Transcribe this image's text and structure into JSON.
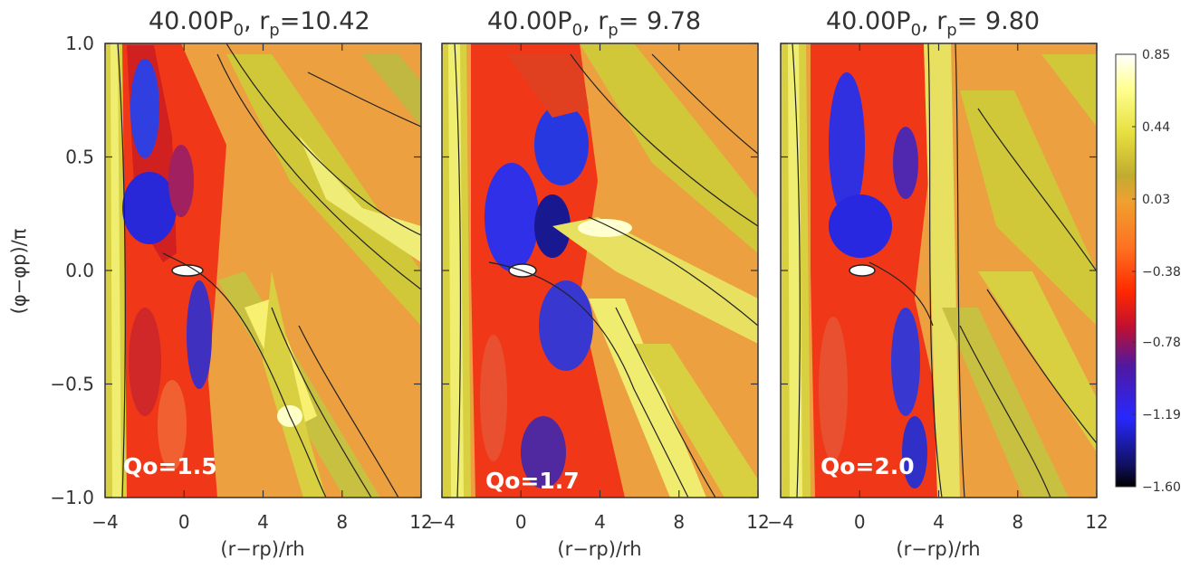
{
  "chart_data": {
    "type": "heatmap",
    "ylabel": "(φ−φp)/π",
    "xlabel": "(r−rp)/rh",
    "xlim": [
      -4,
      12
    ],
    "ylim": [
      -1.0,
      1.0
    ],
    "xticks": [
      "-4",
      "0",
      "4",
      "8",
      "12"
    ],
    "yticks": [
      "1.0",
      "0.5",
      "0.0",
      "−0.5",
      "−1.0"
    ],
    "yticks_values": [
      1.0,
      0.5,
      0.0,
      -0.5,
      -1.0
    ],
    "xticks_values": [
      -4,
      0,
      4,
      8,
      12
    ],
    "panels": [
      {
        "title_prefix": "40.00P",
        "title_sub": "0",
        "title_mid": ", r",
        "title_rsub": "p",
        "title_value": "=10.42",
        "annotation": "Qo=1.5"
      },
      {
        "title_prefix": "40.00P",
        "title_sub": "0",
        "title_mid": ", r",
        "title_rsub": "p",
        "title_value": "= 9.78",
        "annotation": "Qo=1.7"
      },
      {
        "title_prefix": "40.00P",
        "title_sub": "0",
        "title_mid": ", r",
        "title_rsub": "p",
        "title_value": "= 9.80",
        "annotation": "Qo=2.0"
      }
    ],
    "colorbar": {
      "ticks": [
        "0.85",
        "0.44",
        "0.03",
        "−0.38",
        "−0.78",
        "−1.19",
        "−1.60"
      ],
      "tick_values": [
        0.85,
        0.44,
        0.03,
        -0.38,
        -0.78,
        -1.19,
        -1.6
      ],
      "range": [
        -1.6,
        0.85
      ],
      "colors": [
        "#000000",
        "#1010c0",
        "#3030ff",
        "#5018a0",
        "#c01030",
        "#ff2000",
        "#ff5a10",
        "#f0a030",
        "#e89a38",
        "#b8b030",
        "#e8e040",
        "#ffff80",
        "#ffffff"
      ]
    }
  }
}
